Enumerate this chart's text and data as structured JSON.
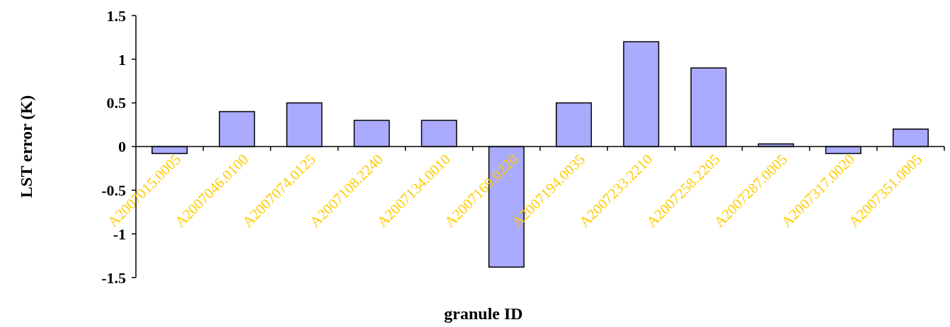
{
  "chart_data": {
    "type": "bar",
    "xlabel": "granule ID",
    "ylabel": "LST error (K)",
    "categories": [
      "A2007015.0005",
      "A2007046.0100",
      "A2007074.0125",
      "A2007108.2240",
      "A2007134.0010",
      "A2007169.0220",
      "A2007194.0035",
      "A2007233.2210",
      "A2007258.2205",
      "A2007287.0005",
      "A2007317.0020",
      "A2007351.0005"
    ],
    "values": [
      -0.08,
      0.4,
      0.5,
      0.3,
      0.3,
      -1.38,
      0.5,
      1.2,
      0.9,
      0.03,
      -0.08,
      0.2
    ],
    "color": "#aaaaff",
    "ylim": [
      -1.5,
      1.5
    ],
    "yticks": [
      -1.5,
      -1,
      -0.5,
      0,
      0.5,
      1,
      1.5
    ],
    "grid": false
  }
}
